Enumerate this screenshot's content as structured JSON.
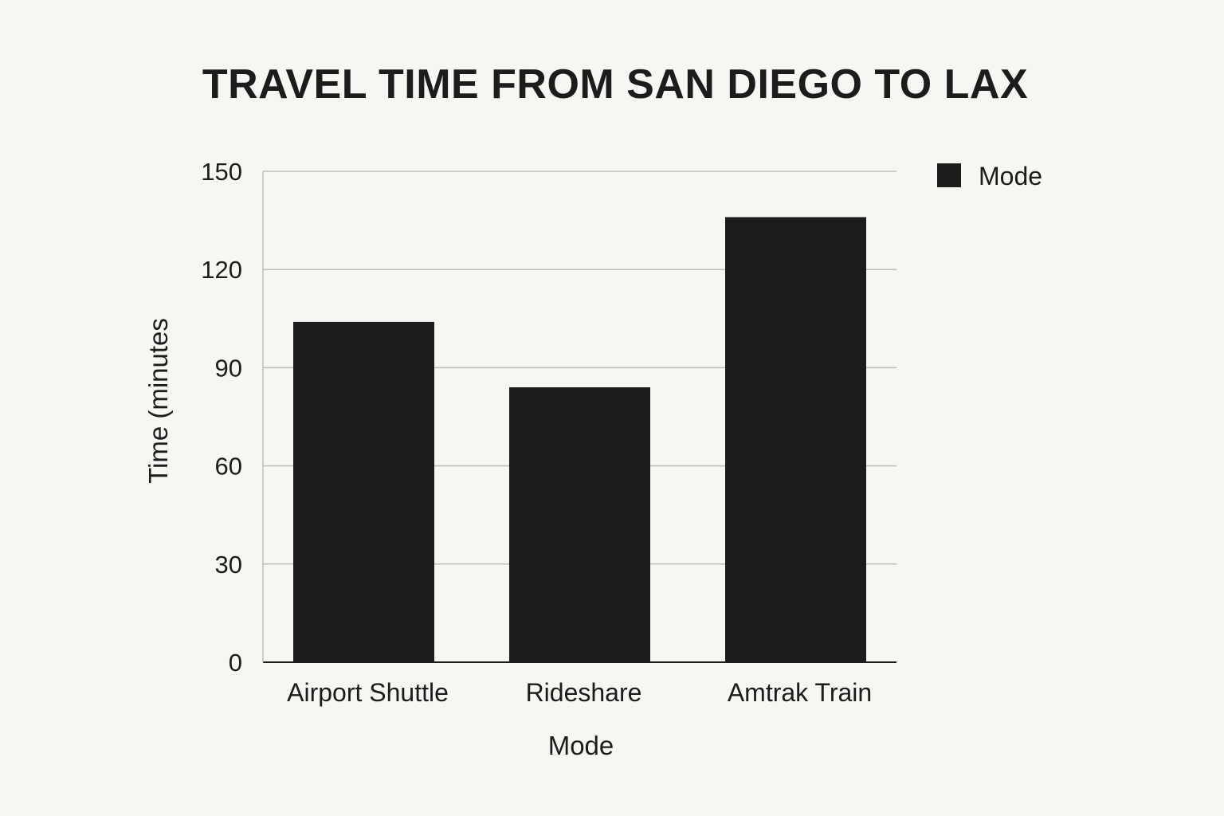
{
  "chart_data": {
    "type": "bar",
    "title": "TRAVEL TIME FROM SAN DIEGO TO LAX",
    "xlabel": "Mode",
    "ylabel": "Time (minutes",
    "categories": [
      "Airport Shuttle",
      "Rideshare",
      "Amtrak Train"
    ],
    "series": [
      {
        "name": "Mode",
        "values": [
          104,
          84,
          136
        ]
      }
    ],
    "yticks": [
      "0",
      "30",
      "60",
      "90",
      "120",
      "150"
    ],
    "ylim": [
      0,
      150
    ],
    "grid": true,
    "legend_position": "top-right",
    "bar_color": "#1c1c1c",
    "grid_color": "#bdbdbd",
    "axis_color": "#1c1c1c"
  }
}
